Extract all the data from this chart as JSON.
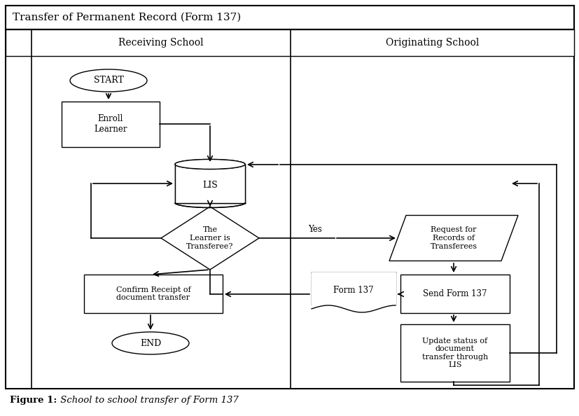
{
  "title": "Transfer of Permanent Record (Form 137)",
  "caption_bold": "Figure 1:",
  "caption_italic": " School to school transfer of Form 137",
  "col1_label": "Receiving School",
  "col2_label": "Originating School",
  "bg_color": "#ffffff",
  "fig_w": 8.28,
  "fig_h": 5.94,
  "dpi": 100
}
